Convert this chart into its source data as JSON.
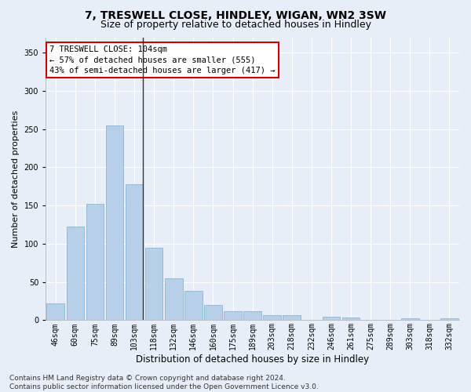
{
  "title1": "7, TRESWELL CLOSE, HINDLEY, WIGAN, WN2 3SW",
  "title2": "Size of property relative to detached houses in Hindley",
  "xlabel": "Distribution of detached houses by size in Hindley",
  "ylabel": "Number of detached properties",
  "categories": [
    "46sqm",
    "60sqm",
    "75sqm",
    "89sqm",
    "103sqm",
    "118sqm",
    "132sqm",
    "146sqm",
    "160sqm",
    "175sqm",
    "189sqm",
    "203sqm",
    "218sqm",
    "232sqm",
    "246sqm",
    "261sqm",
    "275sqm",
    "289sqm",
    "303sqm",
    "318sqm",
    "332sqm"
  ],
  "values": [
    22,
    122,
    152,
    255,
    178,
    95,
    55,
    38,
    20,
    12,
    12,
    7,
    7,
    0,
    5,
    4,
    0,
    0,
    2,
    0,
    2
  ],
  "bar_color": "#b8cfe8",
  "bar_edge_color": "#7aadd4",
  "highlight_index": 4,
  "highlight_line_color": "#333333",
  "ylim": [
    0,
    370
  ],
  "yticks": [
    0,
    50,
    100,
    150,
    200,
    250,
    300,
    350
  ],
  "bg_color": "#e8eef8",
  "plot_bg_color": "#e8eef8",
  "annotation_box_text": "7 TRESWELL CLOSE: 104sqm\n← 57% of detached houses are smaller (555)\n43% of semi-detached houses are larger (417) →",
  "annotation_box_color": "white",
  "annotation_box_edge_color": "#cc0000",
  "footer_line1": "Contains HM Land Registry data © Crown copyright and database right 2024.",
  "footer_line2": "Contains public sector information licensed under the Open Government Licence v3.0.",
  "title1_fontsize": 10,
  "title2_fontsize": 9,
  "xlabel_fontsize": 8.5,
  "ylabel_fontsize": 8,
  "tick_fontsize": 7,
  "annotation_fontsize": 7.5,
  "footer_fontsize": 6.5
}
